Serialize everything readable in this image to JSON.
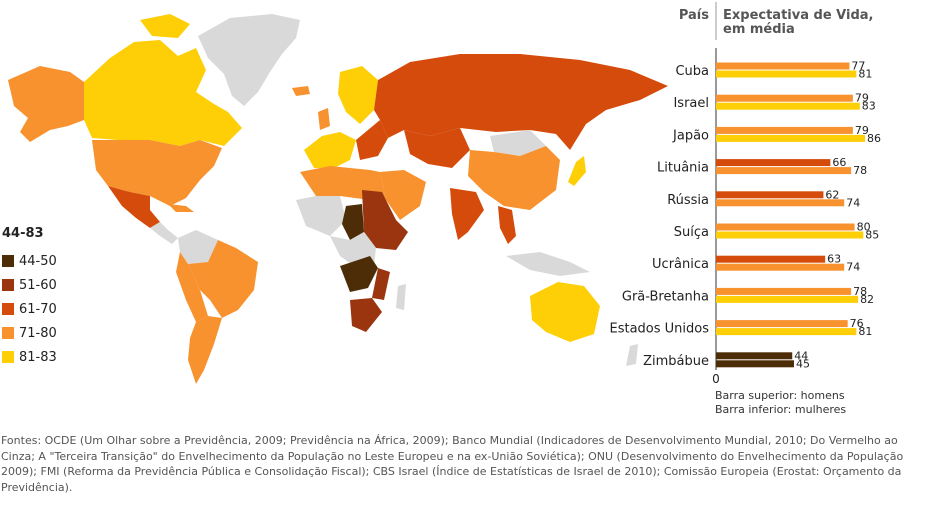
{
  "legend": {
    "title": "44-83",
    "items": [
      {
        "label": "44-50",
        "color": "#4d2c08"
      },
      {
        "label": "51-60",
        "color": "#9a3510"
      },
      {
        "label": "61-70",
        "color": "#d54b0b"
      },
      {
        "label": "71-80",
        "color": "#f7922f"
      },
      {
        "label": "81-83",
        "color": "#fecf07"
      }
    ]
  },
  "chart_data": {
    "type": "bar",
    "country_header": "País",
    "title_line1": "Expectativa de Vida,",
    "title_line2": "em média",
    "zero_label": "0",
    "notes": [
      "Barra superior: homens",
      "Barra inferior: mulheres"
    ],
    "categories": [
      "Cuba",
      "Israel",
      "Japão",
      "Lituânia",
      "Rússia",
      "Suíça",
      "Ucrânica",
      "Grã-Bretanha",
      "Estados Unidos",
      "Zimbábue"
    ],
    "series": [
      {
        "name": "homens",
        "values": [
          77,
          79,
          79,
          66,
          62,
          80,
          63,
          78,
          76,
          44
        ]
      },
      {
        "name": "mulheres",
        "values": [
          81,
          83,
          86,
          78,
          74,
          85,
          74,
          82,
          81,
          45
        ]
      }
    ],
    "male_colors": [
      "#f7922f",
      "#f7922f",
      "#f7922f",
      "#d54b0b",
      "#d54b0b",
      "#f7922f",
      "#d54b0b",
      "#f7922f",
      "#f7922f",
      "#4d2c08"
    ],
    "female_colors": [
      "#fecf07",
      "#fecf07",
      "#fecf07",
      "#f7922f",
      "#f7922f",
      "#fecf07",
      "#f7922f",
      "#fecf07",
      "#fecf07",
      "#4d2c08"
    ],
    "xlim": [
      0,
      86
    ]
  },
  "footer": {
    "sources": "Fontes: OCDE (Um Olhar sobre a Previdência, 2009; Previdência na África, 2009); Banco Mundial (Indicadores de Desenvolvimento Mundial, 2010; Do Vermelho ao Cinza; A \"Terceira Transição\" do Envelhecimento da População no Leste Europeu e na ex-União Soviética); ONU (Desenvolvimento do Envelhecimento da População 2009); FMI (Reforma da Previdência Pública e Consolidação Fiscal); CBS Israel (Índice de Estatísticas de Israel de 2010); Comissão Europeia (Erostat: Orçamento da Previdência)."
  },
  "map_colors": {
    "no_data": "#d9d9d9",
    "band_44_50": "#4d2c08",
    "band_51_60": "#9a3510",
    "band_61_70": "#d54b0b",
    "band_71_80": "#f7922f",
    "band_81_83": "#fecf07"
  }
}
